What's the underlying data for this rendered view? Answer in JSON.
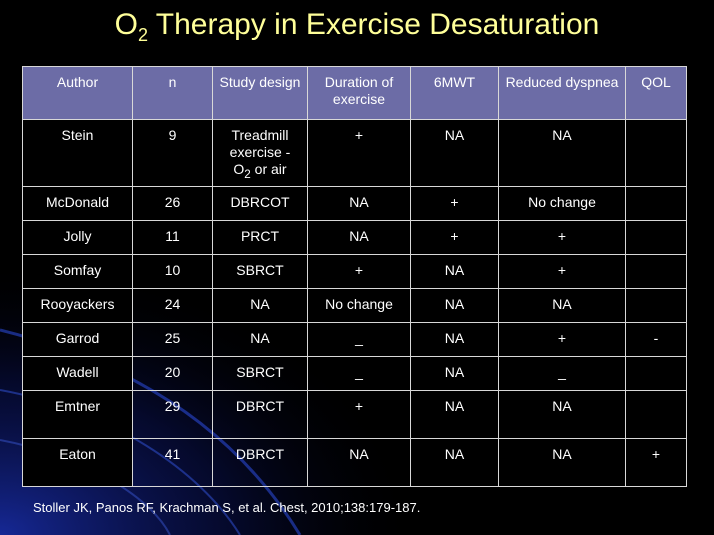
{
  "slide": {
    "title_prefix": "O",
    "title_subscript": "2",
    "title_rest": " Therapy in Exercise Desaturation",
    "citation": "Stoller JK, Panos RF, Krachman S, et al. Chest, 2010;138:179-187."
  },
  "table": {
    "headers": [
      "Author",
      "n",
      "Study design",
      "Duration of exercise",
      "6MWT",
      "Reduced dyspnea",
      "QOL"
    ],
    "stein_design": {
      "line1": "Treadmill exercise -",
      "o": "O",
      "sub": "2",
      "rest": " or air"
    },
    "rows": [
      {
        "author": "Stein",
        "n": "9",
        "design": "",
        "duration": "+",
        "six_mwt": "NA",
        "dyspnea": "NA",
        "qol": ""
      },
      {
        "author": "McDonald",
        "n": "26",
        "design": "DBRCOT",
        "duration": "NA",
        "six_mwt": "+",
        "dyspnea": "No change",
        "qol": ""
      },
      {
        "author": "Jolly",
        "n": "11",
        "design": "PRCT",
        "duration": "NA",
        "six_mwt": "+",
        "dyspnea": "+",
        "qol": ""
      },
      {
        "author": "Somfay",
        "n": "10",
        "design": "SBRCT",
        "duration": "+",
        "six_mwt": "NA",
        "dyspnea": "+",
        "qol": ""
      },
      {
        "author": "Rooyackers",
        "n": "24",
        "design": "NA",
        "duration": "No change",
        "six_mwt": "NA",
        "dyspnea": "NA",
        "qol": ""
      },
      {
        "author": "Garrod",
        "n": "25",
        "design": "NA",
        "duration": "_",
        "six_mwt": "NA",
        "dyspnea": "+",
        "qol": "-"
      },
      {
        "author": "Wadell",
        "n": "20",
        "design": "SBRCT",
        "duration": "_",
        "six_mwt": "NA",
        "dyspnea": "_",
        "qol": ""
      },
      {
        "author": "Emtner",
        "n": "29",
        "design": "DBRCT",
        "duration": "+",
        "six_mwt": "NA",
        "dyspnea": "NA",
        "qol": ""
      },
      {
        "author": "Eaton",
        "n": "41",
        "design": "DBRCT",
        "duration": "NA",
        "six_mwt": "NA",
        "dyspnea": "NA",
        "qol": "+"
      }
    ]
  },
  "colors": {
    "background": "#000000",
    "title": "#ffff99",
    "header_fill": "#6c6ca6",
    "text": "#ffffff",
    "grid": "#d8d8d8"
  }
}
